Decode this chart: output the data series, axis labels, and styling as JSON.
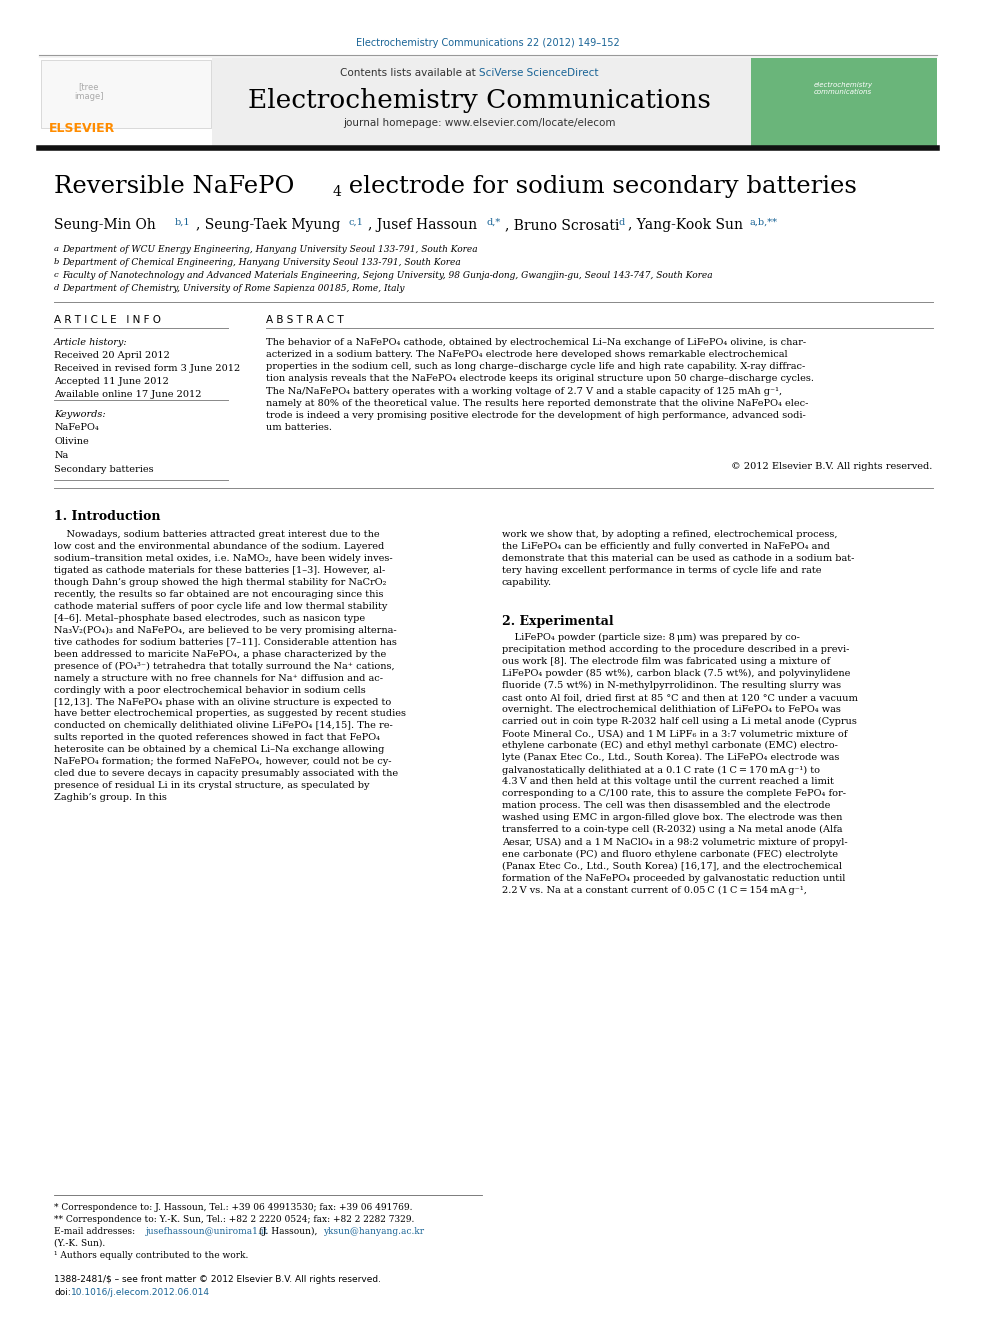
{
  "journal_ref": "Electrochemistry Communications 22 (2012) 149–152",
  "journal_name": "Electrochemistry Communications",
  "journal_homepage": "journal homepage: www.elsevier.com/locate/elecom",
  "contents_line": "Contents lists available at SciVerse ScienceDirect",
  "paper_title": "Reversible NaFePO₄ electrode for sodium secondary batteries",
  "affil_a": "a  Department of WCU Energy Engineering, Hanyang University Seoul 133-791, South Korea",
  "affil_b": "b  Department of Chemical Engineering, Hanyang University Seoul 133-791, South Korea",
  "affil_c": "c  Faculty of Nanotechnology and Advanced Materials Engineering, Sejong University, 98 Gunja-dong, Gwangjin-gu, Seoul 143-747, South Korea",
  "affil_d": "d  Department of Chemistry, University of Rome Sapienza 00185, Rome, Italy",
  "article_info_title": "A R T I C L E   I N F O",
  "abstract_title": "A B S T R A C T",
  "received": "Received 20 April 2012",
  "revised": "Received in revised form 3 June 2012",
  "accepted": "Accepted 11 June 2012",
  "available": "Available online 17 June 2012",
  "keywords": [
    "NaFePO₄",
    "Olivine",
    "Na",
    "Secondary batteries"
  ],
  "copyright": "© 2012 Elsevier B.V. All rights reserved.",
  "section1_title": "1. Introduction",
  "section2_title": "2. Experimental",
  "footnote1": "* Correspondence to: J. Hassoun, Tel.: +39 06 49913530; fax: +39 06 491769.",
  "footnote2": "** Correspondence to: Y.-K. Sun, Tel.: +82 2 2220 0524; fax: +82 2 2282 7329.",
  "footnote4": "¹ Authors equally contributed to the work.",
  "issn_line": "1388-2481/$ – see front matter © 2012 Elsevier B.V. All rights reserved.",
  "doi_text": "10.1016/j.elecom.2012.06.014",
  "bg_color": "#ffffff",
  "journal_color": "#1a6496",
  "link_color": "#1a6496",
  "text_color": "#000000"
}
